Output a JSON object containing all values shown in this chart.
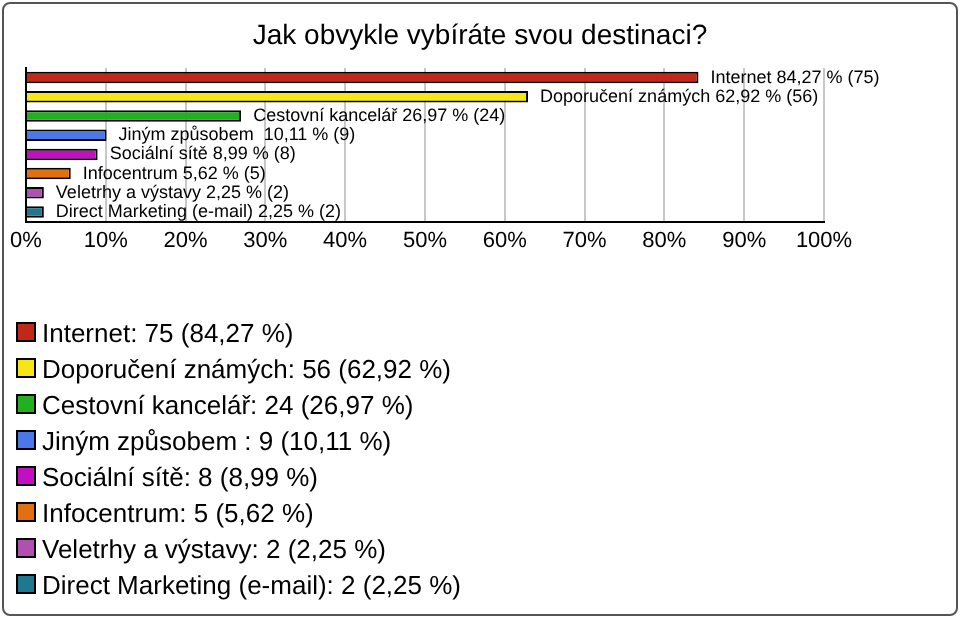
{
  "chart_data": {
    "type": "bar",
    "orientation": "horizontal",
    "title": "Jak obvykle vybíráte svou destinaci?",
    "categories": [
      null,
      null,
      null,
      null,
      null,
      null,
      null,
      null
    ],
    "values": [
      84.27,
      62.92,
      26.97,
      10.11,
      8.99,
      5.62,
      2.25,
      2.25
    ],
    "colors": [
      "#c0281a",
      "#f5e614",
      "#20b020",
      "#4a78e8",
      "#c010c0",
      "#e07010",
      "#b050b0",
      "#207890"
    ],
    "value_labels": [
      "Internet 84,27 % (75)",
      "Doporučení známých 62,92 % (56)",
      "Cestovní kancelář 26,97 % (24)",
      "Jiným způsobem  10,11 % (9)",
      "Sociální sítě 8,99 % (8)",
      "Infocentrum 5,62 % (5)",
      "Veletrhy a výstavy 2,25 % (2)",
      "Direct Marketing (e-mail) 2,25 % (2)"
    ],
    "xlim": [
      0,
      100
    ],
    "xticks": [
      {
        "value": 0,
        "label": "0%"
      },
      {
        "value": 10,
        "label": "10%"
      },
      {
        "value": 20,
        "label": "20%"
      },
      {
        "value": 30,
        "label": "30%"
      },
      {
        "value": 40,
        "label": "40%"
      },
      {
        "value": 50,
        "label": "50%"
      },
      {
        "value": 60,
        "label": "60%"
      },
      {
        "value": 70,
        "label": "70%"
      },
      {
        "value": 80,
        "label": "80%"
      },
      {
        "value": 90,
        "label": "90%"
      },
      {
        "value": 100,
        "label": "100%"
      }
    ],
    "grid": "x",
    "tick_labels": "x",
    "annotations": [
      "Internet: 75 (84,27 %)",
      "Doporučení známých: 56 (62,92 %)",
      "Cestovní kancelář: 24 (26,97 %)",
      "Jiným způsobem : 9 (10,11 %)",
      "Sociální sítě: 8 (8,99 %)",
      "Infocentrum: 5 (5,62 %)",
      "Veletrhy a výstavy: 2 (2,25 %)",
      "Direct Marketing (e-mail): 2 (2,25 %)"
    ]
  }
}
